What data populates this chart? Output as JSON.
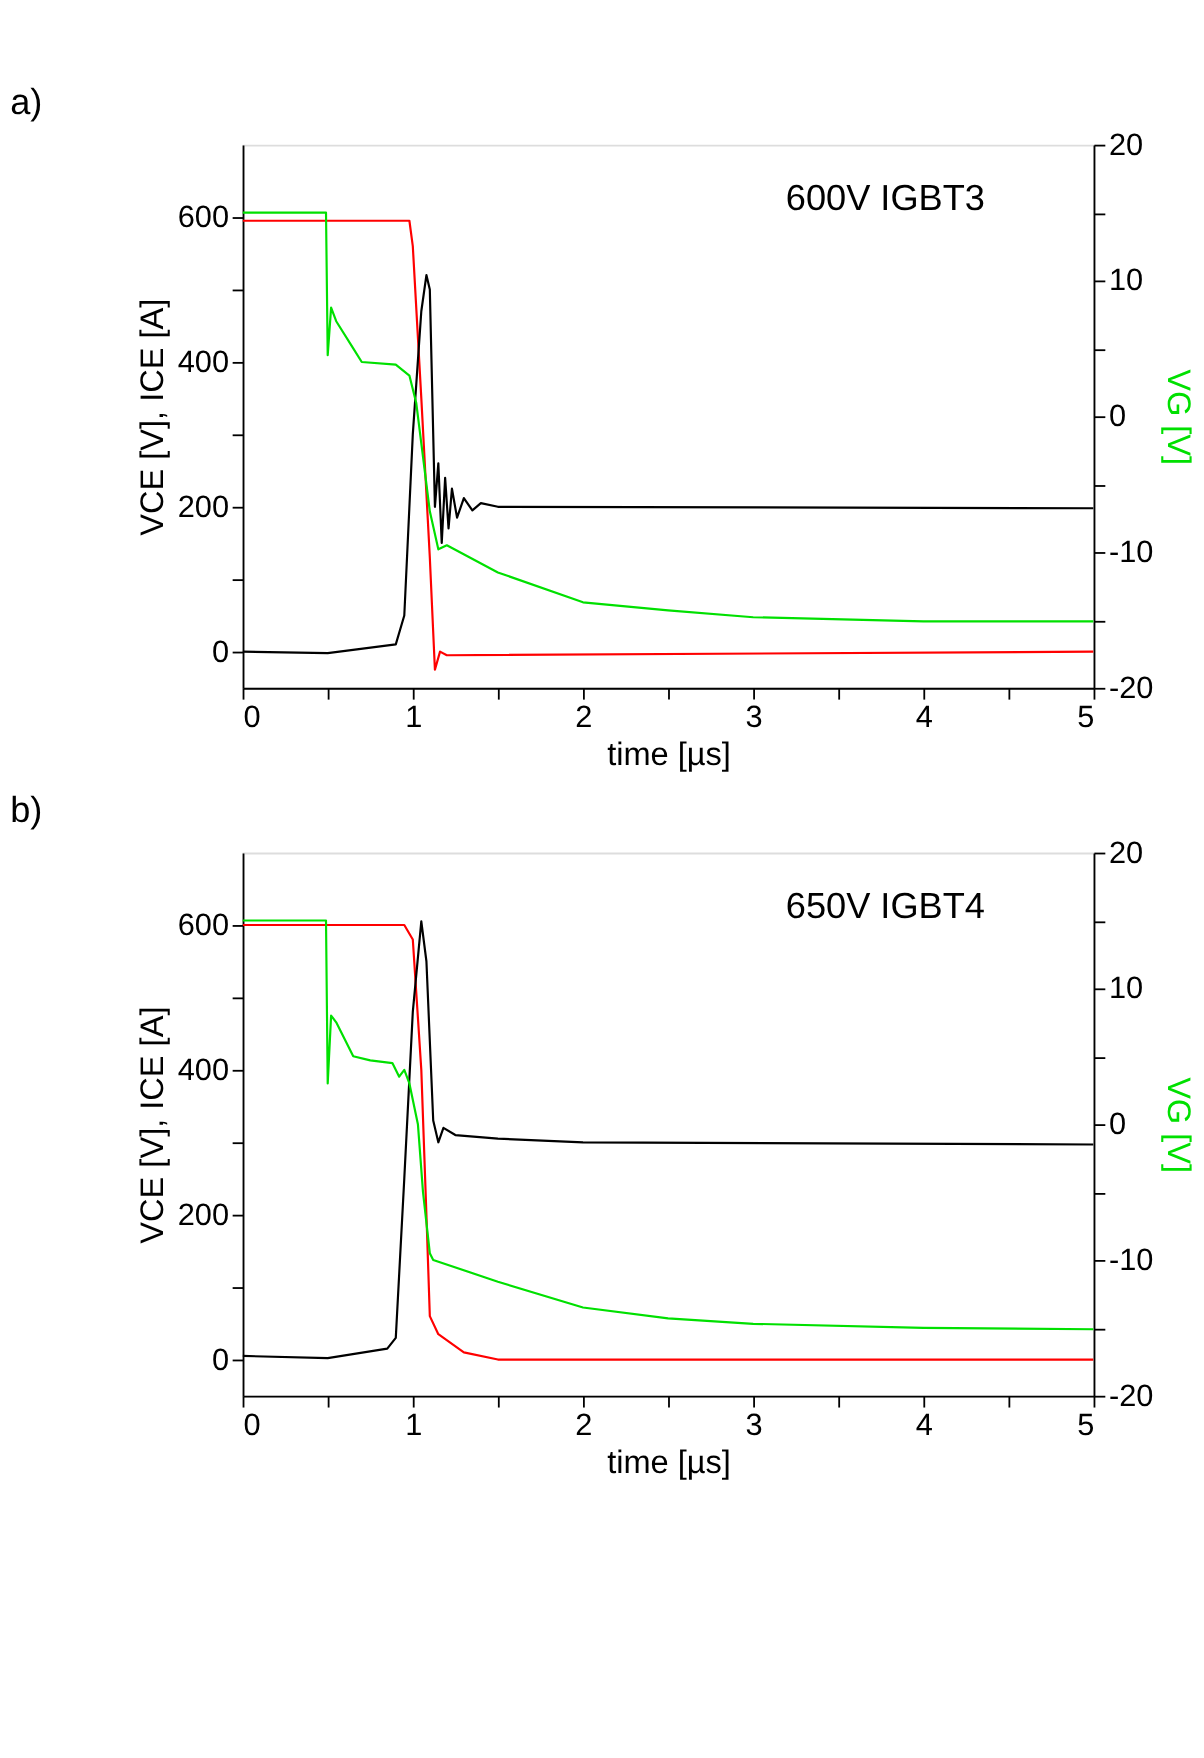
{
  "chart_data": [
    {
      "type": "line",
      "title": "a)",
      "annotations": [
        "600V IGBT3"
      ],
      "xlabel": "time [µs]",
      "ylabel": "VCE [V], ICE [A]",
      "y2label": "VG [V]",
      "xlim": [
        0,
        5
      ],
      "xticks": [
        0,
        {
          "value": 0.5,
          "label": null
        },
        1,
        {
          "value": 1.5,
          "label": null
        },
        2,
        {
          "value": 2.5,
          "label": null
        },
        3,
        {
          "value": 3.5,
          "label": null
        },
        4,
        {
          "value": 4.5,
          "label": null
        },
        5
      ],
      "ylim": [
        -50,
        700
      ],
      "yticks": [
        0,
        {
          "value": 100,
          "label": null
        },
        200,
        {
          "value": 300,
          "label": null
        },
        400,
        {
          "value": 500,
          "label": null
        },
        600
      ],
      "y2lim": [
        -20,
        20
      ],
      "y2ticks": [
        -20,
        {
          "value": -15,
          "label": null
        },
        -10,
        {
          "value": -5,
          "label": null
        },
        0,
        {
          "value": 5,
          "label": null
        },
        10,
        {
          "value": 15,
          "label": null
        },
        20
      ],
      "grid": false,
      "series": [
        {
          "color": "#00e000",
          "axis": "y2",
          "x": [
            0,
            0.49,
            0.5,
            0.52,
            0.55,
            0.65,
            0.7,
            0.9,
            0.98,
            1.02,
            1.05,
            1.1,
            1.15,
            1.2,
            1.5,
            2,
            2.5,
            3,
            4,
            5
          ],
          "values": [
            15,
            15,
            4.5,
            8,
            7,
            5,
            4,
            3.8,
            3,
            1,
            -2,
            -7,
            -9.8,
            -9.5,
            -11.5,
            -13.7,
            -14.3,
            -14.8,
            -15.1,
            -15.1
          ]
        },
        {
          "color": "#ff0000",
          "x": [
            0,
            0.98,
            1.0,
            1.05,
            1.1,
            1.13,
            1.16,
            1.2,
            5
          ],
          "values": [
            595,
            595,
            560,
            350,
            130,
            -25,
            0,
            -5,
            0
          ]
        },
        {
          "color": "#000000",
          "x": [
            0,
            0.5,
            0.9,
            0.95,
            1.0,
            1.05,
            1.08,
            1.1,
            1.13,
            1.15,
            1.17,
            1.19,
            1.21,
            1.23,
            1.26,
            1.3,
            1.35,
            1.4,
            1.5,
            5
          ],
          "values": [
            0,
            -2,
            10,
            50,
            300,
            470,
            520,
            500,
            200,
            260,
            150,
            240,
            170,
            225,
            185,
            212,
            195,
            205,
            200,
            198
          ]
        }
      ]
    },
    {
      "type": "line",
      "title": "b)",
      "annotations": [
        "650V IGBT4"
      ],
      "xlabel": "time [µs]",
      "ylabel": "VCE [V], ICE [A]",
      "y2label": "VG [V]",
      "xlim": [
        0,
        5
      ],
      "xticks": [
        0,
        {
          "value": 0.5,
          "label": null
        },
        1,
        {
          "value": 1.5,
          "label": null
        },
        2,
        {
          "value": 2.5,
          "label": null
        },
        3,
        {
          "value": 3.5,
          "label": null
        },
        4,
        {
          "value": 4.5,
          "label": null
        },
        5
      ],
      "ylim": [
        -50,
        700
      ],
      "yticks": [
        0,
        {
          "value": 100,
          "label": null
        },
        200,
        {
          "value": 300,
          "label": null
        },
        400,
        {
          "value": 500,
          "label": null
        },
        600
      ],
      "y2lim": [
        -20,
        20
      ],
      "y2ticks": [
        -20,
        {
          "value": -15,
          "label": null
        },
        -10,
        {
          "value": -5,
          "label": null
        },
        0,
        {
          "value": 5,
          "label": null
        },
        10,
        {
          "value": 15,
          "label": null
        },
        20
      ],
      "grid": false,
      "series": [
        {
          "color": "#00e000",
          "axis": "y2",
          "x": [
            0,
            0.49,
            0.5,
            0.52,
            0.55,
            0.65,
            0.75,
            0.88,
            0.92,
            0.95,
            0.98,
            1.03,
            1.06,
            1.1,
            1.12,
            1.5,
            2,
            2.5,
            3,
            4,
            5
          ],
          "values": [
            15,
            15,
            3,
            8,
            7.5,
            5,
            4.7,
            4.5,
            3.5,
            4,
            3,
            0,
            -5,
            -9.5,
            -10,
            -11.6,
            -13.5,
            -14.3,
            -14.7,
            -15,
            -15.1
          ]
        },
        {
          "color": "#ff0000",
          "x": [
            0,
            0.95,
            1.0,
            1.05,
            1.08,
            1.1,
            1.15,
            1.3,
            1.5,
            5
          ],
          "values": [
            600,
            600,
            580,
            400,
            200,
            60,
            35,
            10,
            0,
            0
          ]
        },
        {
          "color": "#000000",
          "x": [
            0,
            0.5,
            0.85,
            0.9,
            0.95,
            1.0,
            1.05,
            1.08,
            1.12,
            1.15,
            1.18,
            1.25,
            1.5,
            2,
            5
          ],
          "values": [
            5,
            2,
            15,
            30,
            250,
            480,
            605,
            550,
            330,
            300,
            320,
            310,
            305,
            300,
            297
          ]
        }
      ]
    }
  ]
}
